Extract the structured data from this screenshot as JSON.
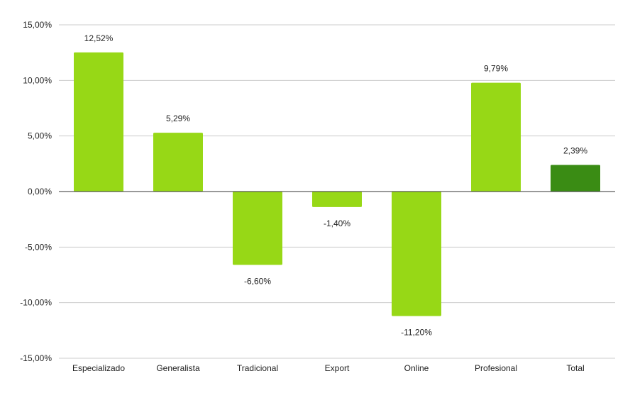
{
  "chart_data": {
    "type": "bar",
    "title": "",
    "xlabel": "",
    "ylabel": "",
    "categories": [
      "Especializado",
      "Generalista",
      "Tradicional",
      "Export",
      "Online",
      "Profesional",
      "Total"
    ],
    "values": [
      12.52,
      5.29,
      -6.6,
      -1.4,
      -11.2,
      9.79,
      2.39
    ],
    "value_labels": [
      "12,52%",
      "5,29%",
      "-6,60%",
      "-1,40%",
      "-11,20%",
      "9,79%",
      "2,39%"
    ],
    "ylim": [
      -15,
      15
    ],
    "yticks": [
      15,
      10,
      5,
      0,
      -5,
      -10,
      -15
    ],
    "ytick_labels": [
      "15,00%",
      "10,00%",
      "5,00%",
      "0,00%",
      "-5,00%",
      "-10,00%",
      "-15,00%"
    ],
    "grid": true,
    "legend": "none",
    "colors": {
      "bar": "#97d816",
      "total_bar": "#3a8c14",
      "grid": "#cccccc",
      "zero_line": "#333333"
    }
  }
}
